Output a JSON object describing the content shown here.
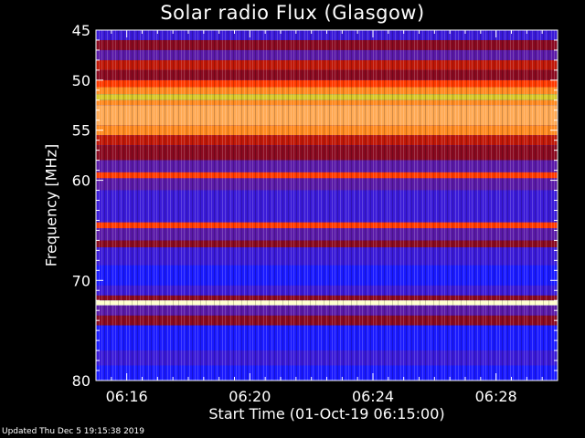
{
  "chart_data": {
    "type": "heatmap",
    "title": "Solar radio Flux (Glasgow)",
    "xlabel": "Start Time (01-Oct-19 06:15:00)",
    "ylabel": "Frequency [MHz]",
    "x_ticks": [
      "06:16",
      "06:20",
      "06:24",
      "06:28"
    ],
    "x_tick_minutes": [
      16,
      20,
      24,
      28
    ],
    "xlim_minutes": [
      15,
      30
    ],
    "y_ticks": [
      45,
      50,
      55,
      60,
      70,
      80
    ],
    "ylim": [
      45,
      80
    ],
    "grid": false,
    "bands": [
      {
        "f0": 45.0,
        "f1": 46.0,
        "level": 1
      },
      {
        "f0": 46.0,
        "f1": 47.0,
        "level": 3
      },
      {
        "f0": 47.0,
        "f1": 48.0,
        "level": 2
      },
      {
        "f0": 48.0,
        "f1": 49.0,
        "level": 4
      },
      {
        "f0": 49.0,
        "f1": 50.0,
        "level": 3
      },
      {
        "f0": 50.0,
        "f1": 50.7,
        "level": 5
      },
      {
        "f0": 50.7,
        "f1": 51.4,
        "level": 6
      },
      {
        "f0": 51.4,
        "f1": 52.0,
        "level": 8
      },
      {
        "f0": 52.0,
        "f1": 52.5,
        "level": 6
      },
      {
        "f0": 52.5,
        "f1": 54.5,
        "level": 7
      },
      {
        "f0": 54.5,
        "f1": 55.5,
        "level": 6
      },
      {
        "f0": 55.5,
        "f1": 56.5,
        "level": 4
      },
      {
        "f0": 56.5,
        "f1": 58.0,
        "level": 3
      },
      {
        "f0": 58.0,
        "f1": 59.2,
        "level": 2
      },
      {
        "f0": 59.2,
        "f1": 59.8,
        "level": 5
      },
      {
        "f0": 59.8,
        "f1": 61.0,
        "level": 2
      },
      {
        "f0": 61.0,
        "f1": 62.5,
        "level": 1
      },
      {
        "f0": 62.5,
        "f1": 64.2,
        "level": 1
      },
      {
        "f0": 64.2,
        "f1": 64.8,
        "level": 5
      },
      {
        "f0": 64.8,
        "f1": 66.0,
        "level": 2
      },
      {
        "f0": 66.0,
        "f1": 66.7,
        "level": 3
      },
      {
        "f0": 66.7,
        "f1": 68.5,
        "level": 1
      },
      {
        "f0": 68.5,
        "f1": 70.5,
        "level": 0
      },
      {
        "f0": 70.5,
        "f1": 71.5,
        "level": 1
      },
      {
        "f0": 71.5,
        "f1": 72.0,
        "level": 3
      },
      {
        "f0": 72.0,
        "f1": 72.5,
        "level": 9
      },
      {
        "f0": 72.5,
        "f1": 73.5,
        "level": 2
      },
      {
        "f0": 73.5,
        "f1": 74.5,
        "level": 3
      },
      {
        "f0": 74.5,
        "f1": 77.0,
        "level": 0
      },
      {
        "f0": 77.0,
        "f1": 78.5,
        "level": 1
      },
      {
        "f0": 78.5,
        "f1": 80.0,
        "level": 0
      }
    ],
    "colormap": [
      "#1a1aff",
      "#3a1ad8",
      "#5a1aa8",
      "#8a0a20",
      "#c01808",
      "#ff3a00",
      "#ff8a20",
      "#ffaa55",
      "#d8c828",
      "#ffffcc"
    ]
  },
  "footer": {
    "text": "Updated Thu Dec  5 19:15:38 2019"
  }
}
